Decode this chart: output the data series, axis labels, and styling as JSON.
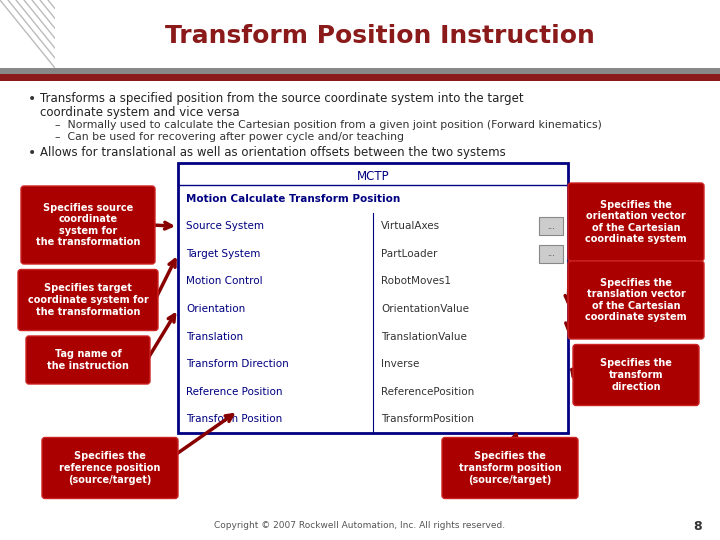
{
  "title": "Transform Position Instruction",
  "title_color": "#8B1A1A",
  "bg_color": "#FFFFFF",
  "bullet1_main": "Transforms a specified position from the source coordinate system into the target",
  "bullet1_cont": "coordinate system and vice versa",
  "sub1": "Normally used to calculate the Cartesian position from a given joint position (Forward kinematics)",
  "sub2": "Can be used for recovering after power cycle and/or teaching",
  "bullet2": "Allows for translational as well as orientation offsets between the two systems",
  "table_title": "MCTP",
  "table_rows": [
    [
      "Motion Calculate Transform Position",
      ""
    ],
    [
      "Source System",
      "VirtualAxes"
    ],
    [
      "Target System",
      "PartLoader"
    ],
    [
      "Motion Control",
      "RobotMoves1"
    ],
    [
      "Orientation",
      "OrientationValue"
    ],
    [
      "Translation",
      "TranslationValue"
    ],
    [
      "Transform Direction",
      "Inverse"
    ],
    [
      "Reference Position",
      "ReferencePosition"
    ],
    [
      "Transform Position",
      "TransformPosition"
    ]
  ],
  "footer": "Copyright © 2007 Rockwell Automation, Inc. All rights reserved.",
  "page_num": "8",
  "red_color": "#AA0000",
  "dark_red": "#880000",
  "navy": "#000080",
  "header_stripe1": "#8B1A1A",
  "header_stripe2": "#888888"
}
